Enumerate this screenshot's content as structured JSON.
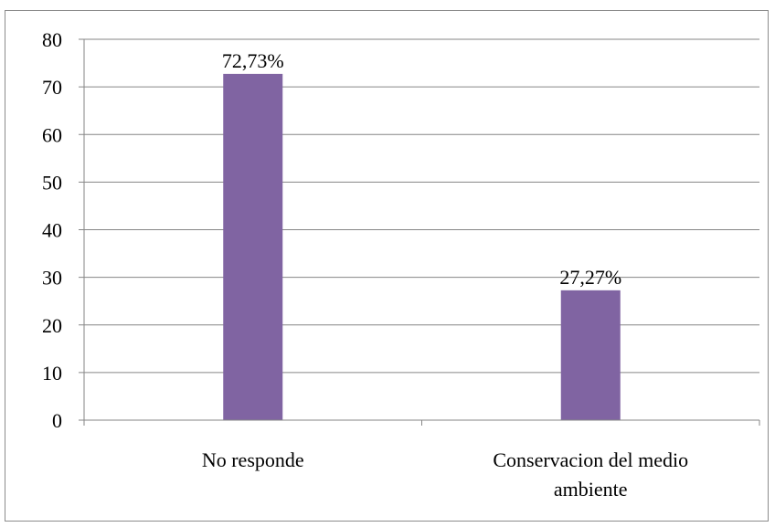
{
  "chart_data": {
    "type": "bar",
    "categories": [
      "No responde",
      "Conservacion del medio ambiente"
    ],
    "category_lines": [
      [
        "No responde"
      ],
      [
        "Conservacion del medio",
        "ambiente"
      ]
    ],
    "values": [
      72.73,
      27.27
    ],
    "data_labels": [
      "72,73%",
      "27,27%"
    ],
    "ylim": [
      0,
      80
    ],
    "yticks": [
      0,
      10,
      20,
      30,
      40,
      50,
      60,
      70,
      80
    ],
    "grid": true,
    "legend": "none",
    "title": "",
    "xlabel": "",
    "ylabel": "",
    "bar_color": "#8064a2",
    "grid_color": "#868686",
    "axis_color": "#868686"
  }
}
